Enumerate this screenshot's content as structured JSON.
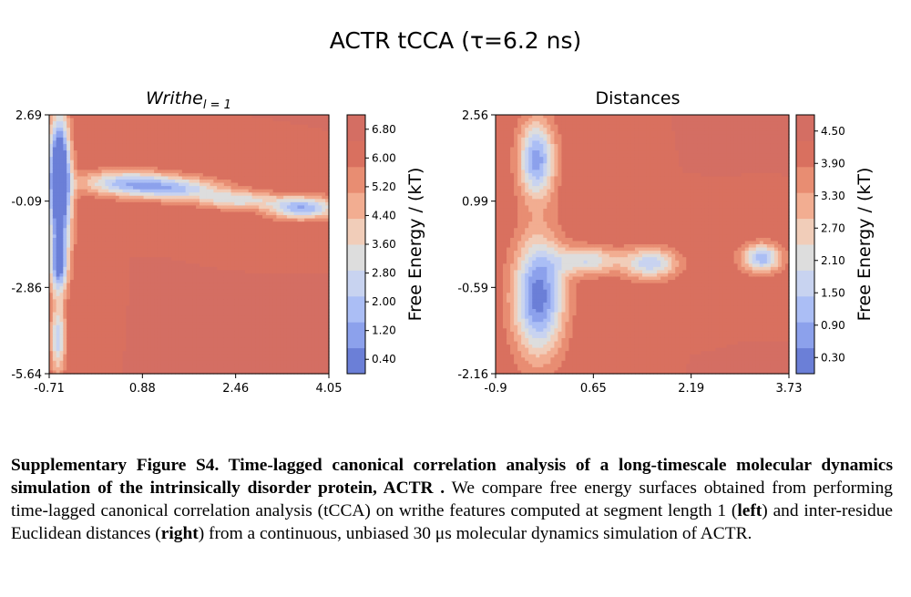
{
  "suptitle": "ACTR tCCA (τ=6.2 ns)",
  "chart_data": [
    {
      "type": "heatmap",
      "title_main": "Writhe",
      "title_sub": "l = 1",
      "x_ticks": [
        "-0.71",
        "0.88",
        "2.46",
        "4.05"
      ],
      "y_ticks": [
        "2.69",
        "-0.09",
        "-2.86",
        "-5.64"
      ],
      "xlim": [
        -0.71,
        4.05
      ],
      "ylim": [
        -5.64,
        2.69
      ],
      "colorbar_label": "Free Energy / (kT)",
      "colorbar_ticks": [
        "6.80",
        "6.00",
        "5.20",
        "4.40",
        "3.60",
        "2.80",
        "2.00",
        "1.20",
        "0.40"
      ],
      "colorbar_range": [
        0.0,
        7.2
      ],
      "wells": [
        {
          "x": -0.54,
          "y": 1.3,
          "sx": 0.12,
          "sy": 1.1,
          "depth": 6.2
        },
        {
          "x": -0.53,
          "y": -0.3,
          "sx": 0.14,
          "sy": 1.3,
          "depth": 6.6
        },
        {
          "x": -0.55,
          "y": -2.2,
          "sx": 0.1,
          "sy": 0.6,
          "depth": 5.2
        },
        {
          "x": -0.56,
          "y": -4.5,
          "sx": 0.09,
          "sy": 0.8,
          "depth": 4.5
        },
        {
          "x": 0.6,
          "y": 0.5,
          "sx": 0.55,
          "sy": 0.28,
          "depth": 4.8
        },
        {
          "x": 1.5,
          "y": 0.3,
          "sx": 0.55,
          "sy": 0.25,
          "depth": 4.2
        },
        {
          "x": 2.5,
          "y": -0.05,
          "sx": 0.45,
          "sy": 0.2,
          "depth": 3.6
        },
        {
          "x": 3.6,
          "y": -0.3,
          "sx": 0.4,
          "sy": 0.25,
          "depth": 5.6
        }
      ]
    },
    {
      "type": "heatmap",
      "title_main": "Distances",
      "title_sub": "",
      "x_ticks": [
        "-0.9",
        "0.65",
        "2.19",
        "3.73"
      ],
      "y_ticks": [
        "2.56",
        "0.99",
        "-0.59",
        "-2.16"
      ],
      "xlim": [
        -0.9,
        3.73
      ],
      "ylim": [
        -2.16,
        2.56
      ],
      "colorbar_label": "Free Energy / (kT)",
      "colorbar_ticks": [
        "4.50",
        "3.90",
        "3.30",
        "2.70",
        "2.10",
        "1.50",
        "0.90",
        "0.30"
      ],
      "colorbar_range": [
        0.0,
        4.8
      ],
      "wells": [
        {
          "x": -0.25,
          "y": 1.75,
          "sx": 0.2,
          "sy": 0.5,
          "depth": 4.0
        },
        {
          "x": -0.22,
          "y": -0.75,
          "sx": 0.28,
          "sy": 0.75,
          "depth": 4.6
        },
        {
          "x": 0.55,
          "y": -0.1,
          "sx": 0.35,
          "sy": 0.18,
          "depth": 2.6
        },
        {
          "x": 1.55,
          "y": -0.15,
          "sx": 0.3,
          "sy": 0.2,
          "depth": 3.0
        },
        {
          "x": 3.3,
          "y": -0.05,
          "sx": 0.22,
          "sy": 0.18,
          "depth": 3.6
        }
      ]
    }
  ],
  "caption": {
    "bold_lead": "Supplementary Figure S4. Time-lagged canonical correlation analysis of a long-timescale molecular dynamics simulation of the intrinsically disorder protein, ACTR .",
    "text_1": " We compare free energy surfaces obtained from performing time-lagged canonical correlation analysis (tCCA) on writhe features computed at segment length 1 (",
    "bold_left": "left",
    "text_2": ") and inter-residue Euclidean distances (",
    "bold_right": "right",
    "text_3": ") from a continuous, unbiased 30 μs molecular dynamics simulation of ACTR."
  }
}
